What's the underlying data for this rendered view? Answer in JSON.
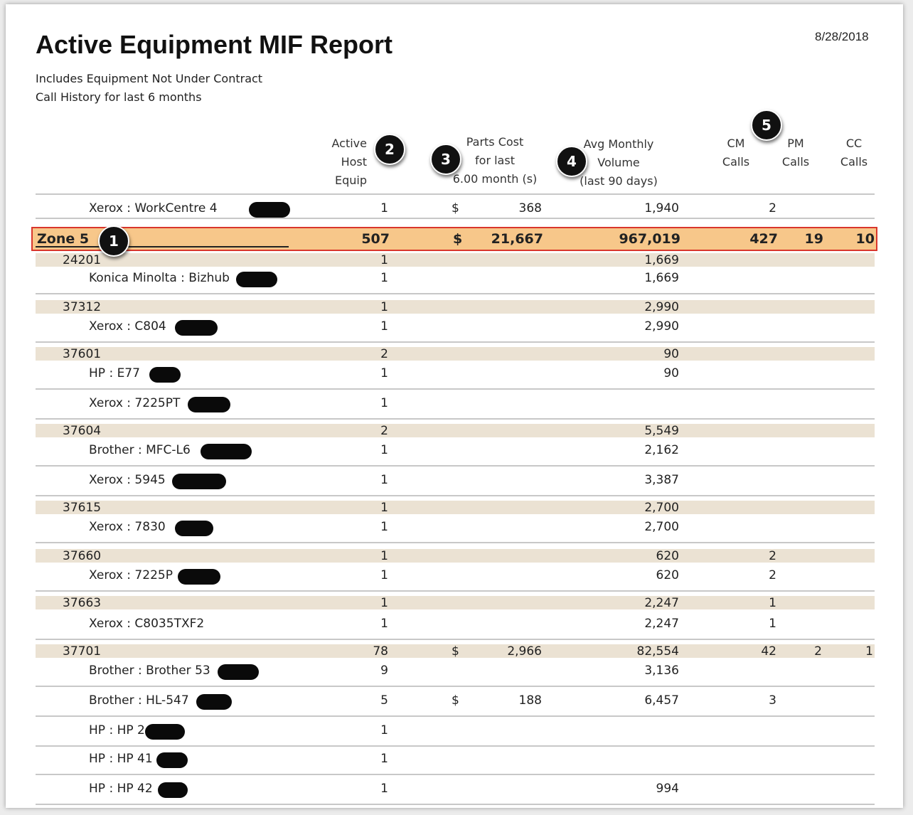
{
  "report": {
    "title": "Active Equipment MIF Report",
    "date": "8/28/2018",
    "subtitle_1": "Includes Equipment Not Under Contract",
    "subtitle_2": "Call History for last  6 months"
  },
  "headers": {
    "active": [
      "Active",
      "Host",
      "Equip"
    ],
    "parts": [
      "Parts Cost",
      "for last",
      "6.00 month (s)"
    ],
    "avg": [
      "Avg Monthly",
      "Volume",
      "(last 90 days)"
    ],
    "cm": [
      "CM",
      "Calls"
    ],
    "pm": [
      "PM",
      "Calls"
    ],
    "cc": [
      "CC",
      "Calls"
    ]
  },
  "badges": [
    "1",
    "2",
    "3",
    "4",
    "5"
  ],
  "rows": [
    {
      "type": "item",
      "name": "Xerox : WorkCentre 4",
      "active": "1",
      "dollar": "$",
      "parts": "368",
      "avg": "1,940",
      "cm": "2",
      "pm": "",
      "cc": ""
    },
    {
      "type": "zone",
      "name": "Zone 5",
      "active": "507",
      "dollar": "$",
      "parts": "21,667",
      "avg": "967,019",
      "cm": "427",
      "pm": "19",
      "cc": "10"
    },
    {
      "type": "group",
      "name": "24201",
      "active": "1",
      "dollar": "",
      "parts": "",
      "avg": "1,669",
      "cm": "",
      "pm": "",
      "cc": ""
    },
    {
      "type": "item",
      "name": "Konica Minolta : Bizhub",
      "active": "1",
      "dollar": "",
      "parts": "",
      "avg": "1,669",
      "cm": "",
      "pm": "",
      "cc": ""
    },
    {
      "type": "group",
      "name": "37312",
      "active": "1",
      "dollar": "",
      "parts": "",
      "avg": "2,990",
      "cm": "",
      "pm": "",
      "cc": ""
    },
    {
      "type": "item",
      "name": "Xerox : C804",
      "active": "1",
      "dollar": "",
      "parts": "",
      "avg": "2,990",
      "cm": "",
      "pm": "",
      "cc": ""
    },
    {
      "type": "group",
      "name": "37601",
      "active": "2",
      "dollar": "",
      "parts": "",
      "avg": "90",
      "cm": "",
      "pm": "",
      "cc": ""
    },
    {
      "type": "item",
      "name": "HP : E77",
      "active": "1",
      "dollar": "",
      "parts": "",
      "avg": "90",
      "cm": "",
      "pm": "",
      "cc": ""
    },
    {
      "type": "item",
      "name": "Xerox : 7225PT",
      "active": "1",
      "dollar": "",
      "parts": "",
      "avg": "",
      "cm": "",
      "pm": "",
      "cc": ""
    },
    {
      "type": "group",
      "name": "37604",
      "active": "2",
      "dollar": "",
      "parts": "",
      "avg": "5,549",
      "cm": "",
      "pm": "",
      "cc": ""
    },
    {
      "type": "item",
      "name": "Brother : MFC-L6",
      "active": "1",
      "dollar": "",
      "parts": "",
      "avg": "2,162",
      "cm": "",
      "pm": "",
      "cc": ""
    },
    {
      "type": "item",
      "name": "Xerox : 5945",
      "active": "1",
      "dollar": "",
      "parts": "",
      "avg": "3,387",
      "cm": "",
      "pm": "",
      "cc": ""
    },
    {
      "type": "group",
      "name": "37615",
      "active": "1",
      "dollar": "",
      "parts": "",
      "avg": "2,700",
      "cm": "",
      "pm": "",
      "cc": ""
    },
    {
      "type": "item",
      "name": "Xerox : 7830",
      "active": "1",
      "dollar": "",
      "parts": "",
      "avg": "2,700",
      "cm": "",
      "pm": "",
      "cc": ""
    },
    {
      "type": "group",
      "name": "37660",
      "active": "1",
      "dollar": "",
      "parts": "",
      "avg": "620",
      "cm": "2",
      "pm": "",
      "cc": ""
    },
    {
      "type": "item",
      "name": "Xerox : 7225P",
      "active": "1",
      "dollar": "",
      "parts": "",
      "avg": "620",
      "cm": "2",
      "pm": "",
      "cc": ""
    },
    {
      "type": "group",
      "name": "37663",
      "active": "1",
      "dollar": "",
      "parts": "",
      "avg": "2,247",
      "cm": "1",
      "pm": "",
      "cc": ""
    },
    {
      "type": "item",
      "name": "Xerox : C8035TXF2",
      "active": "1",
      "dollar": "",
      "parts": "",
      "avg": "2,247",
      "cm": "1",
      "pm": "",
      "cc": ""
    },
    {
      "type": "group",
      "name": "37701",
      "active": "78",
      "dollar": "$",
      "parts": "2,966",
      "avg": "82,554",
      "cm": "42",
      "pm": "2",
      "cc": "1"
    },
    {
      "type": "item",
      "name": "Brother : Brother 53",
      "active": "9",
      "dollar": "",
      "parts": "",
      "avg": "3,136",
      "cm": "",
      "pm": "",
      "cc": ""
    },
    {
      "type": "item",
      "name": "Brother : HL-547",
      "active": "5",
      "dollar": "$",
      "parts": "188",
      "avg": "6,457",
      "cm": "3",
      "pm": "",
      "cc": ""
    },
    {
      "type": "item",
      "name": "HP : HP 2",
      "active": "1",
      "dollar": "",
      "parts": "",
      "avg": "",
      "cm": "",
      "pm": "",
      "cc": ""
    },
    {
      "type": "item",
      "name": "HP : HP 41",
      "active": "1",
      "dollar": "",
      "parts": "",
      "avg": "",
      "cm": "",
      "pm": "",
      "cc": ""
    },
    {
      "type": "item",
      "name": "HP : HP 42",
      "active": "1",
      "dollar": "",
      "parts": "",
      "avg": "994",
      "cm": "",
      "pm": "",
      "cc": ""
    }
  ]
}
